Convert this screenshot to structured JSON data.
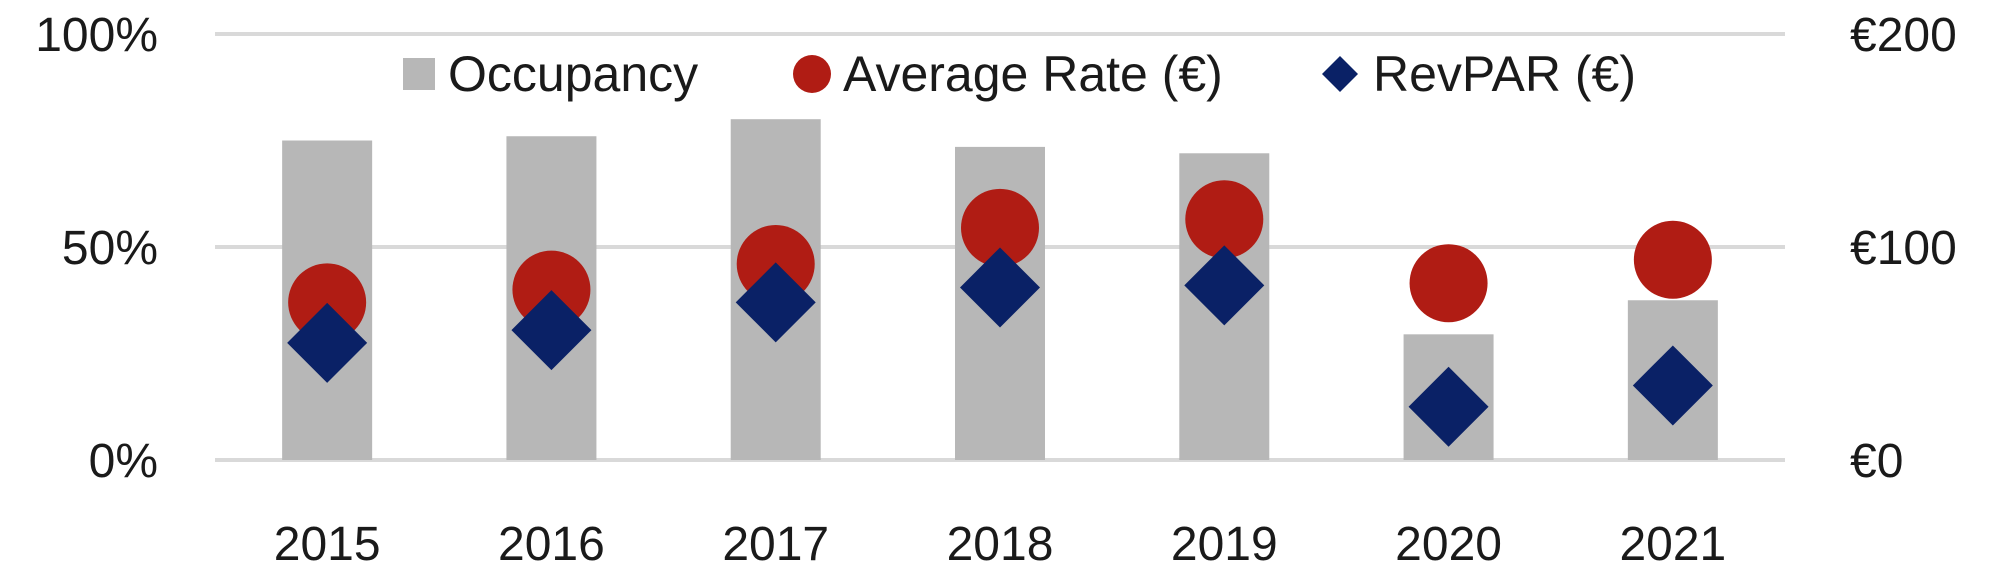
{
  "chart_data": {
    "type": "bar",
    "categories": [
      "2015",
      "2016",
      "2017",
      "2018",
      "2019",
      "2020",
      "2021"
    ],
    "series": [
      {
        "name": "Occupancy",
        "type": "bar",
        "axis": "left",
        "color": "#b7b7b7",
        "values": [
          0.75,
          0.76,
          0.8,
          0.735,
          0.72,
          0.295,
          0.375
        ]
      },
      {
        "name": "Average Rate (€)",
        "type": "scatter",
        "marker": "circle",
        "axis": "right",
        "color": "#b01c14",
        "values": [
          74,
          80,
          92,
          109,
          113,
          83,
          94
        ]
      },
      {
        "name": "RevPAR (€)",
        "type": "scatter",
        "marker": "diamond",
        "axis": "right",
        "color": "#0a2166",
        "values": [
          55,
          61,
          74,
          81,
          82,
          25,
          35
        ]
      }
    ],
    "y_left": {
      "range": [
        0,
        1
      ],
      "ticks": [
        0,
        0.5,
        1
      ],
      "tick_labels": [
        "0%",
        "50%",
        "100%"
      ]
    },
    "y_right": {
      "range": [
        0,
        200
      ],
      "ticks": [
        0,
        100,
        200
      ],
      "tick_labels": [
        "€0",
        "€100",
        "€200"
      ]
    },
    "grid": true,
    "legend": {
      "position": "top"
    }
  }
}
